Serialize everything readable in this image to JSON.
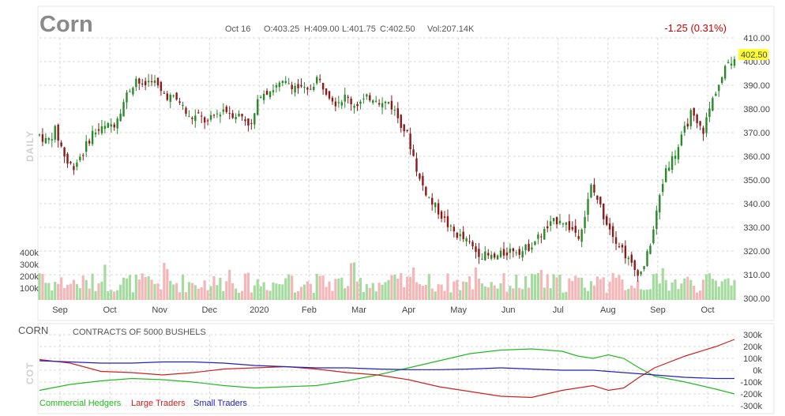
{
  "header": {
    "symbol": "Corn",
    "date": "Oct 16",
    "open": "O:403.25",
    "high": "H:409.00",
    "low": "L:401.75",
    "close": "C:402.50",
    "volume": "Vol:207.14K",
    "change": "-1.25 (0.31%)",
    "last_price": "402.50"
  },
  "colors": {
    "up": "#2a8a2a",
    "down": "#8b1a1a",
    "vol_up": "#a6dba0",
    "vol_down": "#f4b6b6",
    "highlight": "#ffff33",
    "commercial": "#22bb22",
    "large": "#cc2222",
    "small": "#2222bb"
  },
  "chart_data": [
    {
      "type": "candlestick",
      "side_label": "DAILY",
      "y_ticks": [
        "410.00",
        "400.00",
        "390.00",
        "380.00",
        "370.00",
        "360.00",
        "350.00",
        "340.00",
        "330.00",
        "320.00",
        "310.00",
        "300.00"
      ],
      "ylim": [
        300,
        410
      ],
      "x_ticks": [
        "Sep",
        "Oct",
        "Nov",
        "Dec",
        "2020",
        "Feb",
        "Mar",
        "Apr",
        "May",
        "Jun",
        "Jul",
        "Aug",
        "Sep",
        "Oct"
      ],
      "volume_ticks": [
        "400k",
        "300k",
        "200k",
        "100k"
      ],
      "close_path": [
        [
          0,
          369
        ],
        [
          5,
          366
        ],
        [
          10,
          371
        ],
        [
          14,
          364
        ],
        [
          18,
          357
        ],
        [
          22,
          356
        ],
        [
          28,
          362
        ],
        [
          34,
          370
        ],
        [
          42,
          372
        ],
        [
          48,
          374
        ],
        [
          52,
          380
        ],
        [
          56,
          386
        ],
        [
          62,
          393
        ],
        [
          66,
          389
        ],
        [
          72,
          393
        ],
        [
          78,
          387
        ],
        [
          84,
          385
        ],
        [
          90,
          383
        ],
        [
          96,
          376
        ],
        [
          102,
          377
        ],
        [
          108,
          374
        ],
        [
          112,
          377
        ],
        [
          118,
          380
        ],
        [
          124,
          378
        ],
        [
          130,
          377
        ],
        [
          136,
          373
        ],
        [
          142,
          387
        ],
        [
          148,
          388
        ],
        [
          154,
          390
        ],
        [
          160,
          391
        ],
        [
          166,
          389
        ],
        [
          172,
          387
        ],
        [
          178,
          393
        ],
        [
          184,
          388
        ],
        [
          190,
          383
        ],
        [
          196,
          385
        ],
        [
          202,
          382
        ],
        [
          207,
          383
        ],
        [
          212,
          385
        ],
        [
          216,
          385
        ],
        [
          220,
          382
        ],
        [
          224,
          383
        ],
        [
          228,
          379
        ],
        [
          232,
          374
        ],
        [
          236,
          369
        ],
        [
          240,
          360
        ],
        [
          244,
          350
        ],
        [
          248,
          345
        ],
        [
          252,
          340
        ],
        [
          256,
          337
        ],
        [
          260,
          333
        ],
        [
          264,
          329
        ],
        [
          268,
          327
        ],
        [
          272,
          325
        ],
        [
          276,
          323
        ],
        [
          280,
          320
        ],
        [
          286,
          318
        ],
        [
          292,
          317
        ],
        [
          298,
          319
        ],
        [
          304,
          321
        ],
        [
          310,
          320
        ],
        [
          316,
          323
        ],
        [
          322,
          327
        ],
        [
          328,
          331
        ],
        [
          334,
          334
        ],
        [
          340,
          330
        ],
        [
          346,
          327
        ],
        [
          350,
          335
        ],
        [
          354,
          347
        ],
        [
          358,
          342
        ],
        [
          362,
          335
        ],
        [
          366,
          330
        ],
        [
          370,
          325
        ],
        [
          374,
          321
        ],
        [
          378,
          316
        ],
        [
          382,
          312
        ],
        [
          386,
          311
        ],
        [
          390,
          318
        ],
        [
          394,
          329
        ],
        [
          398,
          343
        ],
        [
          402,
          355
        ],
        [
          406,
          359
        ],
        [
          410,
          364
        ],
        [
          414,
          371
        ],
        [
          418,
          378
        ],
        [
          422,
          373
        ],
        [
          426,
          371
        ],
        [
          430,
          380
        ],
        [
          434,
          388
        ],
        [
          438,
          393
        ],
        [
          442,
          400
        ],
        [
          446,
          402
        ]
      ],
      "volume_scale": [
        0,
        400000
      ]
    },
    {
      "type": "line",
      "label": "CORN",
      "subtitle": "CONTRACTS OF 5000 BUSHELS",
      "side_label": "COT",
      "y_ticks": [
        "300k",
        "200k",
        "100k",
        "0k",
        "-100k",
        "-200k",
        "-300k"
      ],
      "ylim": [
        -300000,
        300000
      ],
      "series": [
        {
          "name": "Commercial Hedgers",
          "color": "#22bb22",
          "points": [
            [
              0,
              -170000
            ],
            [
              20,
              -120000
            ],
            [
              40,
              -90000
            ],
            [
              60,
              -70000
            ],
            [
              80,
              -80000
            ],
            [
              100,
              -100000
            ],
            [
              120,
              -130000
            ],
            [
              140,
              -150000
            ],
            [
              160,
              -140000
            ],
            [
              180,
              -130000
            ],
            [
              200,
              -90000
            ],
            [
              220,
              -40000
            ],
            [
              240,
              20000
            ],
            [
              260,
              80000
            ],
            [
              280,
              140000
            ],
            [
              300,
              170000
            ],
            [
              320,
              180000
            ],
            [
              340,
              160000
            ],
            [
              350,
              120000
            ],
            [
              360,
              100000
            ],
            [
              370,
              130000
            ],
            [
              380,
              100000
            ],
            [
              390,
              20000
            ],
            [
              400,
              -50000
            ],
            [
              420,
              -100000
            ],
            [
              440,
              -160000
            ],
            [
              452,
              -200000
            ]
          ]
        },
        {
          "name": "Large Traders",
          "color": "#cc2222",
          "points": [
            [
              0,
              90000
            ],
            [
              20,
              60000
            ],
            [
              40,
              -10000
            ],
            [
              60,
              -20000
            ],
            [
              80,
              -40000
            ],
            [
              100,
              -20000
            ],
            [
              120,
              10000
            ],
            [
              140,
              20000
            ],
            [
              160,
              30000
            ],
            [
              180,
              10000
            ],
            [
              200,
              -20000
            ],
            [
              220,
              -40000
            ],
            [
              240,
              -80000
            ],
            [
              260,
              -140000
            ],
            [
              280,
              -180000
            ],
            [
              300,
              -220000
            ],
            [
              320,
              -230000
            ],
            [
              340,
              -170000
            ],
            [
              360,
              -130000
            ],
            [
              370,
              -170000
            ],
            [
              380,
              -150000
            ],
            [
              390,
              -60000
            ],
            [
              400,
              20000
            ],
            [
              420,
              120000
            ],
            [
              440,
              200000
            ],
            [
              452,
              260000
            ]
          ]
        },
        {
          "name": "Small Traders",
          "color": "#2222bb",
          "points": [
            [
              0,
              80000
            ],
            [
              20,
              70000
            ],
            [
              40,
              60000
            ],
            [
              60,
              60000
            ],
            [
              80,
              70000
            ],
            [
              100,
              70000
            ],
            [
              120,
              60000
            ],
            [
              140,
              40000
            ],
            [
              160,
              30000
            ],
            [
              180,
              20000
            ],
            [
              200,
              20000
            ],
            [
              220,
              10000
            ],
            [
              240,
              5000
            ],
            [
              260,
              5000
            ],
            [
              280,
              10000
            ],
            [
              300,
              20000
            ],
            [
              320,
              10000
            ],
            [
              340,
              0
            ],
            [
              360,
              0
            ],
            [
              380,
              -20000
            ],
            [
              400,
              -40000
            ],
            [
              420,
              -60000
            ],
            [
              440,
              -70000
            ],
            [
              452,
              -70000
            ]
          ]
        }
      ]
    }
  ]
}
